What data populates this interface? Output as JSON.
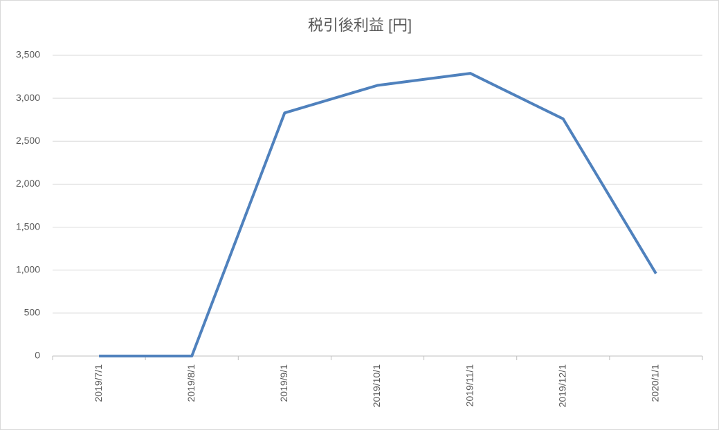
{
  "chart_data": {
    "type": "line",
    "title": "税引後利益 [円]",
    "categories": [
      "2019/7/1",
      "2019/8/1",
      "2019/9/1",
      "2019/10/1",
      "2019/11/1",
      "2019/12/1",
      "2020/1/1"
    ],
    "series": [
      {
        "name": "税引後利益",
        "color": "#4f81bd",
        "values": [
          0,
          0,
          2830,
          3150,
          3290,
          2760,
          960
        ]
      }
    ],
    "ylim": [
      0,
      3500
    ],
    "yticks": [
      0,
      500,
      {
        "value": 1000,
        "label": "1,000"
      },
      {
        "value": 1500,
        "label": "1,500"
      },
      {
        "value": 2000,
        "label": "2,000"
      },
      {
        "value": 2500,
        "label": "2,500"
      },
      {
        "value": 3000,
        "label": "3,000"
      },
      {
        "value": 3500,
        "label": "3,500"
      }
    ],
    "grid": true
  }
}
